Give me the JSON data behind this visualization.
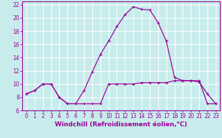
{
  "xlabel": "Windchill (Refroidissement éolien,°C)",
  "x": [
    0,
    1,
    2,
    3,
    4,
    5,
    6,
    7,
    8,
    9,
    10,
    11,
    12,
    13,
    14,
    15,
    16,
    17,
    18,
    19,
    20,
    21,
    22,
    23
  ],
  "line1": [
    8.5,
    9.0,
    10.0,
    10.0,
    8.0,
    7.0,
    7.0,
    9.0,
    11.8,
    14.5,
    16.5,
    18.7,
    20.5,
    21.7,
    21.3,
    21.2,
    19.3,
    16.5,
    11.0,
    10.5,
    10.5,
    10.3,
    8.5,
    7.0
  ],
  "line2": [
    8.5,
    9.0,
    10.0,
    10.0,
    8.0,
    7.0,
    7.0,
    7.0,
    7.0,
    7.0,
    10.0,
    10.0,
    10.0,
    10.0,
    10.2,
    10.2,
    10.2,
    10.2,
    10.5,
    10.5,
    10.5,
    10.5,
    7.0,
    7.0
  ],
  "color": "#990099",
  "bg_color": "#c8ecec",
  "grid_color": "#aadddd",
  "ylim": [
    6,
    22.5
  ],
  "yticks": [
    6,
    8,
    10,
    12,
    14,
    16,
    18,
    20,
    22
  ],
  "xlim": [
    -0.5,
    23.5
  ],
  "label_fontsize": 6.5,
  "tick_fontsize": 5.5
}
